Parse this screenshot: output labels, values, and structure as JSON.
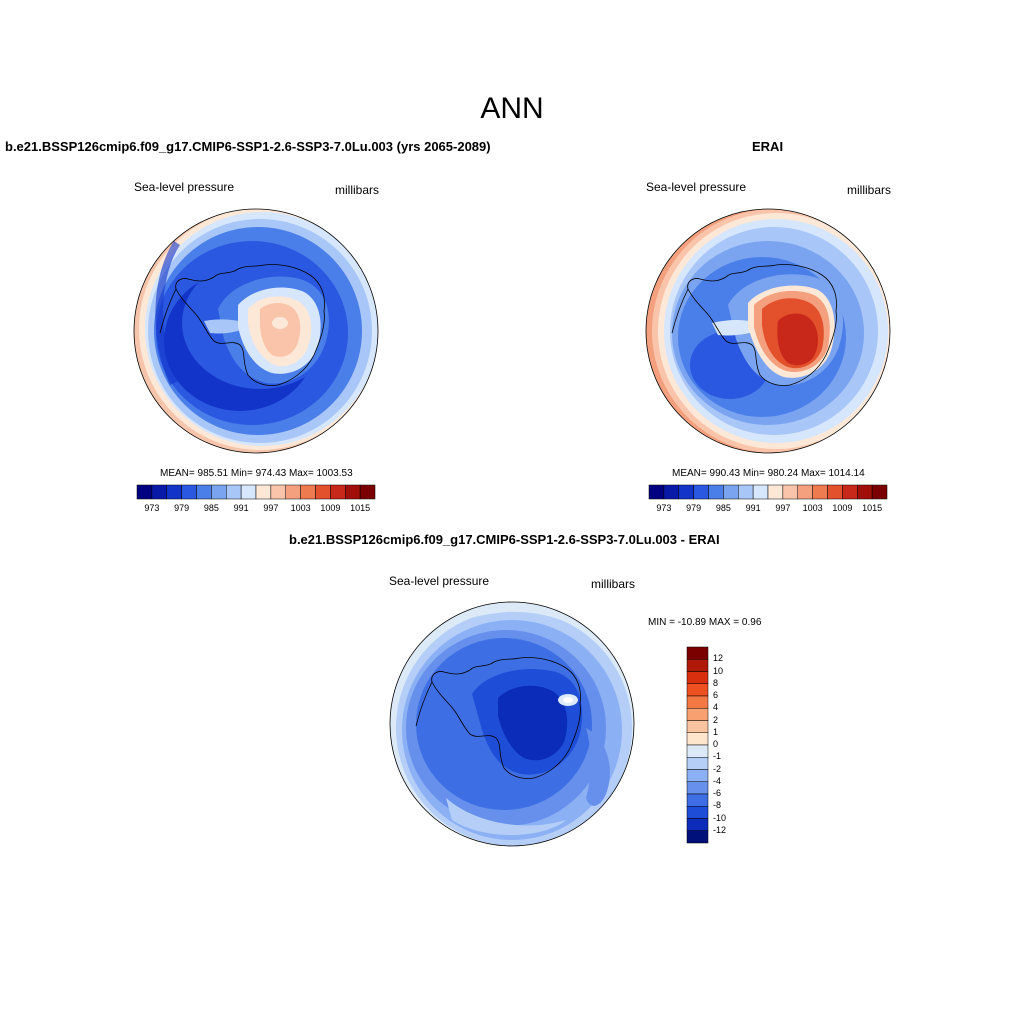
{
  "page": {
    "title": "ANN"
  },
  "panels": [
    {
      "title": "b.e21.BSSP126cmip6.f09_g17.CMIP6-SSP1-2.6-SSP3-7.0Lu.003 (yrs 2065-2089)",
      "variable": "Sea-level pressure",
      "units": "millibars",
      "stats": "MEAN= 985.51  Min= 974.43  Max= 1003.53",
      "labelbar": {
        "colors": [
          "#000080",
          "#0a1aa8",
          "#1234c8",
          "#2a58e0",
          "#4a7ee8",
          "#7aa4f0",
          "#a8c6f8",
          "#d6e6fc",
          "#fde8d8",
          "#f9c4aa",
          "#f4a07e",
          "#ee7a50",
          "#e2502c",
          "#c8281a",
          "#a01008",
          "#7a0000"
        ],
        "tick_labels": [
          "973",
          "979",
          "985",
          "991",
          "997",
          "1003",
          "1009",
          "1015"
        ]
      },
      "chart_data": {
        "type": "heatmap",
        "projection": "south polar stereographic",
        "field": "Sea-level pressure",
        "units": "millibars",
        "mean": 985.51,
        "min": 974.43,
        "max": 1003.53,
        "contour_levels": [
          973,
          976,
          979,
          982,
          985,
          988,
          991,
          994,
          997,
          1000,
          1003,
          1006,
          1009,
          1012,
          1015
        ]
      }
    },
    {
      "title": "ERAI",
      "variable": "Sea-level pressure",
      "units": "millibars",
      "stats": "MEAN= 990.43  Min= 980.24  Max= 1014.14",
      "labelbar": {
        "colors": [
          "#000080",
          "#0a1aa8",
          "#1234c8",
          "#2a58e0",
          "#4a7ee8",
          "#7aa4f0",
          "#a8c6f8",
          "#d6e6fc",
          "#fde8d8",
          "#f9c4aa",
          "#f4a07e",
          "#ee7a50",
          "#e2502c",
          "#c8281a",
          "#a01008",
          "#7a0000"
        ],
        "tick_labels": [
          "973",
          "979",
          "985",
          "991",
          "997",
          "1003",
          "1009",
          "1015"
        ]
      },
      "chart_data": {
        "type": "heatmap",
        "projection": "south polar stereographic",
        "field": "Sea-level pressure",
        "units": "millibars",
        "mean": 990.43,
        "min": 980.24,
        "max": 1014.14,
        "contour_levels": [
          973,
          976,
          979,
          982,
          985,
          988,
          991,
          994,
          997,
          1000,
          1003,
          1006,
          1009,
          1012,
          1015
        ]
      }
    }
  ],
  "diff_panel": {
    "title": "b.e21.BSSP126cmip6.f09_g17.CMIP6-SSP1-2.6-SSP3-7.0Lu.003 - ERAI",
    "variable": "Sea-level pressure",
    "units": "millibars",
    "stats": "MIN = -10.89 MAX =   0.96",
    "labelbar": {
      "colors": [
        "#7a0000",
        "#b01808",
        "#d8300e",
        "#ee5020",
        "#f47844",
        "#f8a070",
        "#fbc4a0",
        "#fde6cc",
        "#dceaf8",
        "#b4cef8",
        "#8cb0f4",
        "#6690ec",
        "#3e6ee4",
        "#1e4ed8",
        "#0a2cb8",
        "#00107a"
      ],
      "tick_labels": [
        "12",
        "10",
        "8",
        "6",
        "4",
        "2",
        "1",
        "0",
        "-1",
        "-2",
        "-4",
        "-6",
        "-8",
        "-10",
        "-12"
      ]
    },
    "chart_data": {
      "type": "heatmap",
      "projection": "south polar stereographic",
      "field": "Sea-level pressure difference",
      "units": "millibars",
      "min": -10.89,
      "max": 0.96,
      "contour_levels": [
        12,
        10,
        8,
        6,
        4,
        2,
        1,
        0,
        -1,
        -2,
        -4,
        -6,
        -8,
        -10,
        -12
      ]
    }
  }
}
